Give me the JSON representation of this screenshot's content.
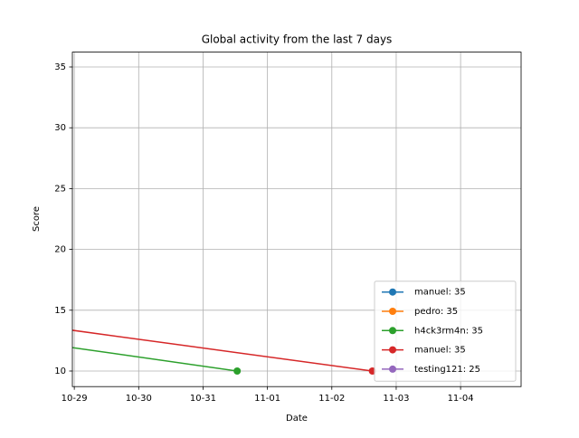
{
  "chart_data": {
    "type": "line",
    "title": "Global activity from the last 7 days",
    "x_label": "Date",
    "y_label": "Score",
    "xlim": [
      -0.03,
      6.94
    ],
    "xticks": [
      {
        "value": 0,
        "label": "10-29"
      },
      {
        "value": 1,
        "label": "10-30"
      },
      {
        "value": 2,
        "label": "10-31"
      },
      {
        "value": 3,
        "label": "11-01"
      },
      {
        "value": 4,
        "label": "11-02"
      },
      {
        "value": 5,
        "label": "11-03"
      },
      {
        "value": 6,
        "label": "11-04"
      }
    ],
    "ylim": [
      8.72,
      36.22
    ],
    "yticks": [
      10,
      15,
      20,
      25,
      30,
      35
    ],
    "grid": true,
    "legend": "lower right",
    "series": [
      {
        "name": "manuel: 35",
        "color": "#1f77b4",
        "x": [],
        "values": []
      },
      {
        "name": "pedro: 35",
        "color": "#ff7f0e",
        "x": [],
        "values": []
      },
      {
        "name": "h4ck3rm4n: 35",
        "color": "#2ca02c",
        "x": [
          -1,
          2.53
        ],
        "values": [
          12.66,
          10
        ]
      },
      {
        "name": "manuel: 35",
        "color": "#d62728",
        "x": [
          -1,
          4.63
        ],
        "values": [
          14.05,
          10
        ]
      },
      {
        "name": "testing121: 25",
        "color": "#9467bd",
        "x": [],
        "values": []
      }
    ]
  }
}
